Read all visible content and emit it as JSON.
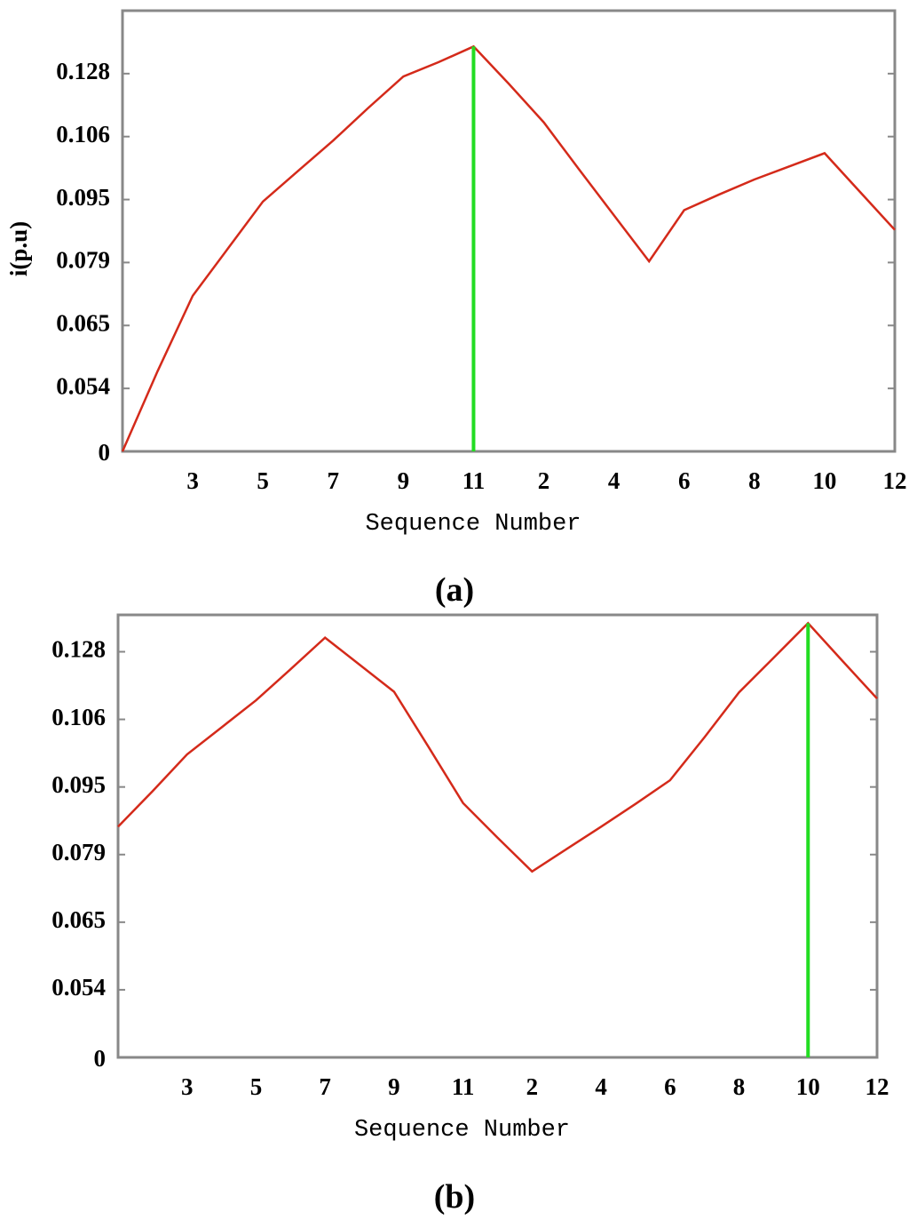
{
  "chart_data": [
    {
      "type": "line",
      "caption": "(a)",
      "y_label": "i(p.u)",
      "x_label": "Sequence Number",
      "categories": [
        null,
        null,
        "3",
        null,
        "5",
        null,
        "7",
        null,
        "9",
        null,
        "11",
        null,
        "2",
        null,
        "4",
        null,
        "6",
        null,
        "8",
        null,
        "10",
        null,
        "12"
      ],
      "series": [
        {
          "color": "#d42a1a",
          "values": [
            0,
            0.057,
            0.0716,
            0.0825,
            0.0945,
            0.1,
            0.1053,
            0.116,
            0.127,
            0.132,
            0.1375,
            0.1245,
            0.111,
            0.1003,
            0.091,
            0.0793,
            0.0923,
            0.0959,
            0.0985,
            0.1008,
            0.1031,
            0.0964,
            0.0873
          ]
        }
      ],
      "cursor": 10,
      "cursor_color": "#22dd22",
      "ylim": [
        0,
        0.15
      ],
      "yticks": [
        0,
        0.054,
        0.065,
        0.079,
        0.095,
        0.106,
        0.128
      ]
    },
    {
      "type": "line",
      "caption": "(b)",
      "x_label": "Sequence Number",
      "categories": [
        null,
        null,
        "3",
        null,
        "5",
        null,
        "7",
        null,
        "9",
        null,
        "11",
        null,
        "2",
        null,
        "4",
        null,
        "6",
        null,
        "8",
        null,
        "10",
        null,
        "12"
      ],
      "series": [
        {
          "color": "#d42a1a",
          "values": [
            0.0856,
            0.094,
            0.1003,
            0.1047,
            0.1122,
            0.1223,
            0.1326,
            0.1238,
            0.115,
            0.1015,
            0.0912,
            0.083,
            0.0755,
            0.0803,
            0.0856,
            0.091,
            0.0961,
            0.1031,
            0.1148,
            0.126,
            0.1373,
            0.125,
            0.1128
          ]
        }
      ],
      "cursor": 20,
      "cursor_color": "#22dd22",
      "ylim": [
        0,
        0.14
      ],
      "yticks": [
        0,
        0.054,
        0.065,
        0.079,
        0.095,
        0.106,
        0.128
      ]
    }
  ]
}
